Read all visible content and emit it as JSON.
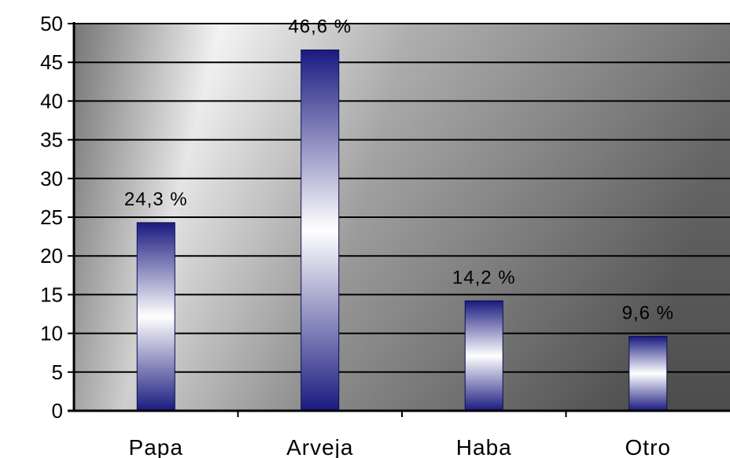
{
  "chart_data": {
    "type": "bar",
    "title": "",
    "xlabel": "",
    "ylabel": "",
    "categories": [
      "Papa",
      "Arveja",
      "Haba",
      "Otro"
    ],
    "values": [
      24.3,
      46.6,
      14.2,
      9.6
    ],
    "data_labels": [
      "24,3 %",
      "46,6 %",
      "14,2 %",
      "9,6 %"
    ],
    "ylim": [
      0,
      50
    ],
    "yticks": [
      "0",
      "5",
      "10",
      "15",
      "20",
      "25",
      "30",
      "35",
      "40",
      "45",
      "50"
    ],
    "grid": true,
    "legend": "none",
    "colors": {
      "bar_dark": "#1a1a80",
      "bar_light": "#ffffff",
      "bg_dark": "#5a5a5a",
      "bg_light": "#f4f4f4"
    }
  }
}
